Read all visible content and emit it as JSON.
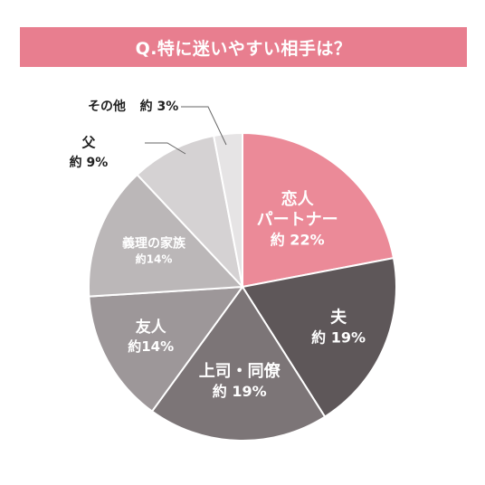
{
  "title": "Q.特に迷いやすい相手は？",
  "chart_data": {
    "type": "pie",
    "title": "Q.特に迷いやすい相手は？",
    "slices": [
      {
        "label": "恋人\nパートナー",
        "value_label": "約 22%",
        "value": 22,
        "color": "#eb8a98",
        "text_color": "#ffffff"
      },
      {
        "label": "夫",
        "value_label": "約 19%",
        "value": 19,
        "color": "#5e5759",
        "text_color": "#ffffff"
      },
      {
        "label": "上司・同僚",
        "value_label": "約 19%",
        "value": 19,
        "color": "#7c7577",
        "text_color": "#ffffff"
      },
      {
        "label": "友人",
        "value_label": "約14%",
        "value": 14,
        "color": "#9d9799",
        "text_color": "#ffffff"
      },
      {
        "label": "義理の家族",
        "value_label": "約14%",
        "value": 14,
        "color": "#bbb7b8",
        "text_color": "#ffffff"
      },
      {
        "label": "父",
        "value_label": "約 9%",
        "value": 9,
        "color": "#d5d2d3",
        "text_color": "#222222"
      },
      {
        "label": "その他",
        "value_label": "約 3%",
        "value": 3,
        "color": "#e6e4e5",
        "text_color": "#222222"
      }
    ]
  }
}
